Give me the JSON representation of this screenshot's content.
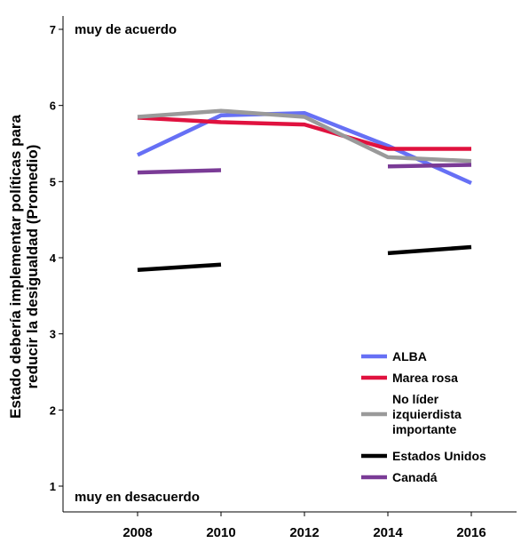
{
  "chart_data": {
    "type": "line",
    "ylabel_line1": "Estado debería implementar políticas para",
    "ylabel_line2": "reducir la desigualdad (Promedio)",
    "xlabel": "",
    "x": [
      2008,
      2010,
      2012,
      2014,
      2016
    ],
    "xlim": [
      2008,
      2016
    ],
    "ylim": [
      1,
      7
    ],
    "yticks": [
      1,
      2,
      3,
      4,
      5,
      6,
      7
    ],
    "annotations": {
      "top": "muy de acuerdo",
      "bottom": "muy en desacuerdo"
    },
    "legend_position": "bottom-right",
    "legend": [
      "ALBA",
      "Marea rosa",
      "No líder\nizquierdista\nimportante",
      "Estados Unidos",
      "Canadá"
    ],
    "series": [
      {
        "name": "ALBA",
        "color": "#6670f5",
        "points": [
          [
            2008,
            5.35
          ],
          [
            2010,
            5.87
          ],
          [
            2012,
            5.9
          ],
          [
            2014,
            5.47
          ],
          [
            2016,
            4.98
          ]
        ]
      },
      {
        "name": "Marea rosa",
        "color": "#e0123f",
        "points": [
          [
            2008,
            5.84
          ],
          [
            2010,
            5.78
          ],
          [
            2012,
            5.75
          ],
          [
            2014,
            5.43
          ],
          [
            2016,
            5.43
          ]
        ]
      },
      {
        "name": "No líder izquierdista importante",
        "color": "#9a9a9a",
        "points": [
          [
            2008,
            5.85
          ],
          [
            2010,
            5.93
          ],
          [
            2012,
            5.85
          ],
          [
            2014,
            5.32
          ],
          [
            2016,
            5.27
          ]
        ]
      },
      {
        "name": "Estados Unidos",
        "color": "#000000",
        "points": [
          [
            2008,
            3.84
          ],
          [
            2010,
            3.91
          ]
        ]
      },
      {
        "name": "Estados Unidos",
        "color": "#000000",
        "points": [
          [
            2014,
            4.06
          ],
          [
            2016,
            4.14
          ]
        ]
      },
      {
        "name": "Canadá",
        "color": "#7a3b96",
        "points": [
          [
            2008,
            5.12
          ],
          [
            2010,
            5.15
          ]
        ]
      },
      {
        "name": "Canadá",
        "color": "#7a3b96",
        "points": [
          [
            2014,
            5.2
          ],
          [
            2016,
            5.22
          ]
        ]
      }
    ]
  }
}
